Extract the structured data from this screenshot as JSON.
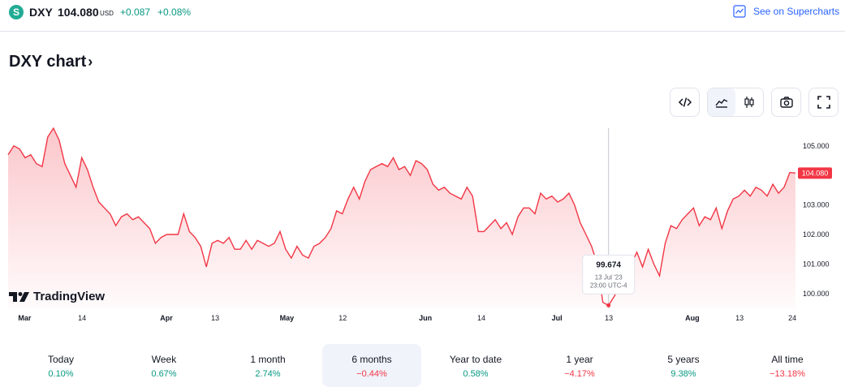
{
  "header": {
    "symbol_icon": "S",
    "symbol": "DXY",
    "price": "104.080",
    "currency": "USD",
    "change": "+0.087",
    "change_pct": "+0.08%",
    "supercharts_link": "See on Supercharts",
    "supercharts_icon": "chart-icon"
  },
  "page": {
    "title": "DXY chart",
    "title_chevron": "›"
  },
  "toolbar": {
    "embed_icon": "code-icon",
    "area_icon": "area-chart-icon",
    "candles_icon": "candlestick-icon",
    "snapshot_icon": "camera-icon",
    "fullscreen_icon": "fullscreen-icon",
    "active": "area"
  },
  "chart_data": {
    "type": "area",
    "series_color": "#f23645",
    "fill_color": "#f23645",
    "ylim": [
      99.5,
      105.6
    ],
    "y_ticks": [
      "105.000",
      "104.000",
      "103.000",
      "102.000",
      "101.000",
      "100.000"
    ],
    "x_ticks": [
      "Mar",
      "14",
      "Apr",
      "13",
      "May",
      "12",
      "Jun",
      "14",
      "Jul",
      "13",
      "Aug",
      "13",
      "24"
    ],
    "last_price_label": "104.080",
    "watermark": "TradingView",
    "tooltip": {
      "value": "99.674",
      "date": "13 Jul '23",
      "time": "23:00 UTC-4"
    },
    "grid": false,
    "points": [
      104.7,
      105.0,
      104.9,
      104.6,
      104.7,
      104.4,
      104.3,
      105.3,
      105.6,
      105.2,
      104.4,
      104.0,
      103.6,
      104.6,
      104.2,
      103.6,
      103.1,
      102.9,
      102.7,
      102.3,
      102.6,
      102.7,
      102.5,
      102.6,
      102.4,
      102.2,
      101.7,
      101.9,
      102.0,
      102.0,
      102.0,
      102.7,
      102.1,
      101.9,
      101.6,
      100.9,
      101.7,
      101.8,
      101.7,
      101.9,
      101.5,
      101.5,
      101.8,
      101.5,
      101.8,
      101.7,
      101.6,
      101.7,
      102.1,
      101.5,
      101.2,
      101.6,
      101.3,
      101.2,
      101.6,
      101.7,
      101.9,
      102.2,
      102.8,
      102.7,
      103.2,
      103.6,
      103.2,
      103.8,
      104.2,
      104.3,
      104.4,
      104.3,
      104.6,
      104.2,
      104.3,
      104.0,
      104.5,
      104.4,
      104.2,
      103.7,
      103.5,
      103.6,
      103.4,
      103.3,
      103.2,
      103.6,
      103.3,
      102.1,
      102.1,
      102.3,
      102.5,
      102.2,
      102.4,
      102.0,
      102.6,
      102.9,
      102.9,
      102.7,
      103.4,
      103.2,
      103.3,
      103.1,
      103.2,
      103.4,
      103.0,
      102.4,
      102.0,
      101.6,
      101.0,
      99.7,
      99.6,
      99.9,
      100.3,
      100.8,
      101.0,
      101.4,
      100.9,
      101.5,
      101.0,
      100.6,
      101.7,
      102.3,
      102.2,
      102.5,
      102.7,
      102.9,
      102.3,
      102.6,
      102.5,
      102.9,
      102.2,
      102.8,
      103.2,
      103.3,
      103.5,
      103.3,
      103.6,
      103.5,
      103.3,
      103.7,
      103.4,
      103.6,
      104.1,
      104.08
    ]
  },
  "periods": [
    {
      "label": "Today",
      "value": "0.10%",
      "sign": "pos",
      "active": false
    },
    {
      "label": "Week",
      "value": "0.67%",
      "sign": "pos",
      "active": false
    },
    {
      "label": "1 month",
      "value": "2.74%",
      "sign": "pos",
      "active": false
    },
    {
      "label": "6 months",
      "value": "−0.44%",
      "sign": "neg",
      "active": true
    },
    {
      "label": "Year to date",
      "value": "0.58%",
      "sign": "pos",
      "active": false
    },
    {
      "label": "1 year",
      "value": "−4.17%",
      "sign": "neg",
      "active": false
    },
    {
      "label": "5 years",
      "value": "9.38%",
      "sign": "pos",
      "active": false
    },
    {
      "label": "All time",
      "value": "−13.18%",
      "sign": "neg",
      "active": false
    }
  ]
}
